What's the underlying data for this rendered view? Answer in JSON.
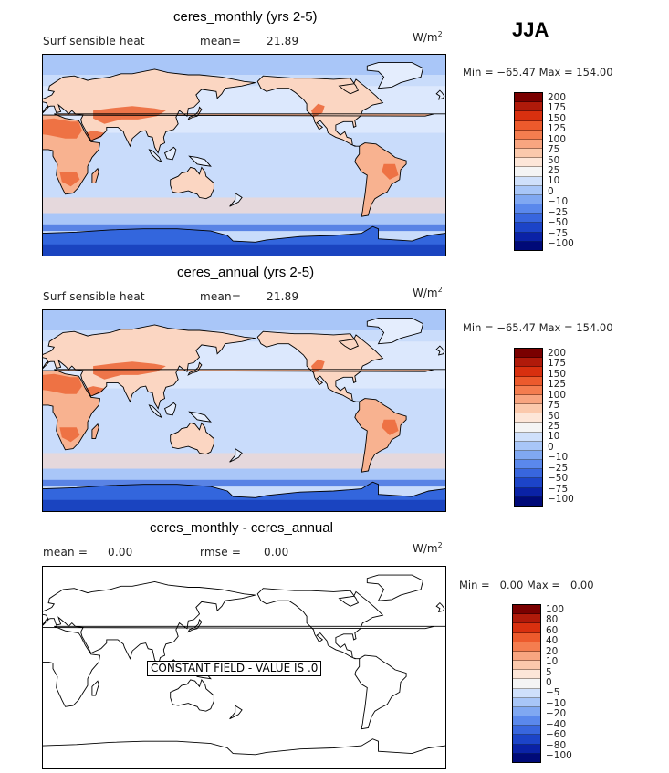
{
  "season": "JJA",
  "units_base": "W/m",
  "units_exp": "2",
  "panels": [
    {
      "title": "ceres_monthly (yrs 2-5)",
      "left_label": "Surf sensible heat",
      "stat_label": "mean=",
      "stat_value": "21.89",
      "minmax": "Min = −65.47 Max = 154.00",
      "map_fill": "field"
    },
    {
      "title": "ceres_annual (yrs 2-5)",
      "left_label": "Surf sensible heat",
      "stat_label": "mean=",
      "stat_value": "21.89",
      "minmax": "Min = −65.47 Max = 154.00",
      "map_fill": "field"
    },
    {
      "title": "ceres_monthly - ceres_annual",
      "left_label": "mean =",
      "left_value": "0.00",
      "stat_label": "rmse =",
      "stat_value": "0.00",
      "minmax": "Min =   0.00 Max =   0.00",
      "map_fill": "constant",
      "constant_text": "CONSTANT FIELD - VALUE IS .0"
    }
  ],
  "colorbars": {
    "field": {
      "colors": [
        "#7a0000",
        "#b01a0a",
        "#d8300f",
        "#ec5a2c",
        "#f47d4f",
        "#f8a580",
        "#fbc9ac",
        "#fde6d8",
        "#f4f4f4",
        "#cfe0fb",
        "#a8c6f8",
        "#80a8f2",
        "#5a88ec",
        "#3866de",
        "#1c44c8",
        "#0a22a6",
        "#000a78"
      ],
      "labels": [
        "200",
        "175",
        "150",
        "125",
        "100",
        "75",
        "50",
        "25",
        "10",
        "0",
        "−10",
        "−25",
        "−50",
        "−75",
        "−100"
      ]
    },
    "diff": {
      "colors": [
        "#7a0000",
        "#b01a0a",
        "#d8300f",
        "#ec5a2c",
        "#f47d4f",
        "#f8a580",
        "#fbc9ac",
        "#fde6d8",
        "#f4f4f4",
        "#cfe0fb",
        "#a8c6f8",
        "#80a8f2",
        "#5a88ec",
        "#3866de",
        "#1c44c8",
        "#0a22a6",
        "#000a78"
      ],
      "labels": [
        "100",
        "80",
        "60",
        "40",
        "20",
        "10",
        "5",
        "0",
        "−5",
        "−10",
        "−20",
        "−40",
        "−60",
        "−80",
        "−100"
      ]
    }
  },
  "colors": {
    "ocean": "#c9dcfb",
    "ocean_light": "#e4edfd",
    "ocean_mid": "#a9c6f8",
    "ice": "#3366dd",
    "ice_deep": "#1a44c0",
    "land_warm": "#f8b290",
    "land_hot": "#ec6a3c",
    "land_mild": "#fbd6c2",
    "coast": "#000000"
  }
}
